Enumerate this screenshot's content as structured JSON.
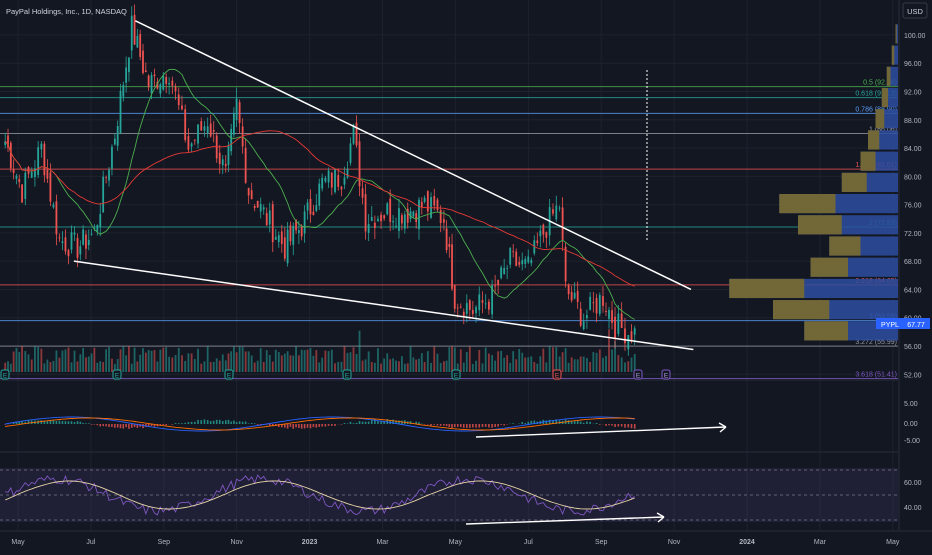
{
  "header": {
    "symbol_title": "PayPal Holdings, Inc., 1D, NASDAQ",
    "currency": "USD"
  },
  "price_axis": {
    "labels": [
      "100.00",
      "96.00",
      "92.00",
      "88.00",
      "84.00",
      "80.00",
      "76.00",
      "72.00",
      "68.00",
      "64.00",
      "60.00",
      "56.00",
      "52.00"
    ],
    "ticker_badge": "PYPL",
    "last_price": "67.77"
  },
  "macd_axis": {
    "labels": [
      "5.00",
      "0.00",
      "-5.00"
    ]
  },
  "rsi_axis": {
    "labels": [
      "60.00",
      "40.00"
    ]
  },
  "time_axis": {
    "labels": [
      "May",
      "Jul",
      "Sep",
      "Nov",
      "2023",
      "Mar",
      "May",
      "Jul",
      "Sep",
      "Nov",
      "2024",
      "Mar",
      "May"
    ],
    "bold": [
      "2023",
      "2024"
    ]
  },
  "colors": {
    "background": "#131722",
    "grid": "#1e222d",
    "up": "#26a69a",
    "down": "#ef5350",
    "trendline": "#ffffff",
    "ma_fast": "#4caf50",
    "ma_slow": "#e53935",
    "volume_profile_up": "#2d4ea0",
    "volume_profile_down": "#7a6a2e",
    "macd_line": "#2962ff",
    "signal_line": "#ff6d00",
    "rsi_line": "#7e57c2",
    "rsi_ma": "#e8d6a8"
  },
  "fibonacci_levels": [
    {
      "ratio": "0.5",
      "price": "92.68",
      "label": "0.5 (92.68)",
      "color": "#4caf50"
    },
    {
      "ratio": "0.618",
      "price": "91.13",
      "label": "0.618 (91.13)",
      "color": "#26a69a"
    },
    {
      "ratio": "0.786",
      "price": "88.90",
      "label": "0.786 (88.90)",
      "color": "#5b9cf6"
    },
    {
      "ratio": "1",
      "price": "86.06",
      "label": "1 (86.06)",
      "color": "#9598a1"
    },
    {
      "ratio": "1.382",
      "price": "81.01",
      "label": "1.382 (81.01)",
      "color": "#ef5350"
    },
    {
      "ratio": "2",
      "price": "72.83",
      "label": "2 (72.83)",
      "color": "#26a69a"
    },
    {
      "ratio": "2.618",
      "price": "64.65",
      "label": "2.618 (64.65)",
      "color": "#ef5350"
    },
    {
      "ratio": "3",
      "price": "59.59",
      "label": "3 (59.59)",
      "color": "#5b9cf6"
    },
    {
      "ratio": "3.272",
      "price": "55.99",
      "label": "3.272 (55.99)",
      "color": "#9598a1"
    },
    {
      "ratio": "3.618",
      "price": "51.41",
      "label": "3.618 (51.41)",
      "color": "#7e57c2"
    }
  ],
  "event_markers": [
    "E",
    "E",
    "E",
    "E",
    "E",
    "E",
    "E",
    "E",
    "E"
  ],
  "chart_data": {
    "type": "candlestick",
    "symbol": "PYPL",
    "interval": "1D",
    "exchange": "NASDAQ",
    "x_range": [
      "2022-05",
      "2024-05"
    ],
    "ylim": [
      50,
      102
    ],
    "last_price": 67.77,
    "close_series": [
      {
        "date": "2022-05-02",
        "close": 85
      },
      {
        "date": "2022-05-16",
        "close": 78
      },
      {
        "date": "2022-06-01",
        "close": 84
      },
      {
        "date": "2022-06-16",
        "close": 71
      },
      {
        "date": "2022-07-01",
        "close": 70
      },
      {
        "date": "2022-07-15",
        "close": 72
      },
      {
        "date": "2022-08-01",
        "close": 86
      },
      {
        "date": "2022-08-15",
        "close": 101
      },
      {
        "date": "2022-08-29",
        "close": 93
      },
      {
        "date": "2022-09-15",
        "close": 95
      },
      {
        "date": "2022-10-01",
        "close": 84
      },
      {
        "date": "2022-10-17",
        "close": 88
      },
      {
        "date": "2022-11-01",
        "close": 80
      },
      {
        "date": "2022-11-10",
        "close": 90
      },
      {
        "date": "2022-11-20",
        "close": 78
      },
      {
        "date": "2022-12-05",
        "close": 74
      },
      {
        "date": "2022-12-20",
        "close": 70
      },
      {
        "date": "2023-01-03",
        "close": 73
      },
      {
        "date": "2023-01-20",
        "close": 79
      },
      {
        "date": "2023-02-05",
        "close": 80
      },
      {
        "date": "2023-02-15",
        "close": 86
      },
      {
        "date": "2023-02-25",
        "close": 74
      },
      {
        "date": "2023-03-15",
        "close": 75
      },
      {
        "date": "2023-04-01",
        "close": 75
      },
      {
        "date": "2023-04-15",
        "close": 76
      },
      {
        "date": "2023-05-01",
        "close": 74
      },
      {
        "date": "2023-05-10",
        "close": 63
      },
      {
        "date": "2023-05-25",
        "close": 61
      },
      {
        "date": "2023-06-10",
        "close": 63
      },
      {
        "date": "2023-06-25",
        "close": 68
      },
      {
        "date": "2023-07-10",
        "close": 67
      },
      {
        "date": "2023-07-25",
        "close": 73
      },
      {
        "date": "2023-08-05",
        "close": 76
      },
      {
        "date": "2023-08-10",
        "close": 64
      },
      {
        "date": "2023-08-25",
        "close": 60
      },
      {
        "date": "2023-09-10",
        "close": 63
      },
      {
        "date": "2023-09-20",
        "close": 59
      },
      {
        "date": "2023-10-01",
        "close": 58
      },
      {
        "date": "2023-10-09",
        "close": 57.8
      }
    ],
    "volume_profile_rows": [
      {
        "price": 100,
        "volume": 2,
        "down": 1
      },
      {
        "price": 97,
        "volume": 5,
        "down": 2
      },
      {
        "price": 94,
        "volume": 9,
        "down": 3
      },
      {
        "price": 91,
        "volume": 13,
        "down": 5
      },
      {
        "price": 88,
        "volume": 18,
        "down": 7
      },
      {
        "price": 85,
        "volume": 24,
        "down": 9
      },
      {
        "price": 82,
        "volume": 30,
        "down": 12
      },
      {
        "price": 79,
        "volume": 45,
        "down": 20
      },
      {
        "price": 76,
        "volume": 95,
        "down": 45
      },
      {
        "price": 73,
        "volume": 80,
        "down": 35
      },
      {
        "price": 70,
        "volume": 55,
        "down": 25
      },
      {
        "price": 67,
        "volume": 70,
        "down": 30
      },
      {
        "price": 64,
        "volume": 135,
        "down": 60
      },
      {
        "price": 61,
        "volume": 100,
        "down": 45
      },
      {
        "price": 58,
        "volume": 75,
        "down": 35
      }
    ],
    "trendlines": [
      {
        "name": "upper",
        "from": {
          "date": "2022-08-18",
          "price": 102
        },
        "to": {
          "date": "2023-11-22",
          "price": 64
        }
      },
      {
        "name": "lower",
        "from": {
          "date": "2022-06-28",
          "price": 68
        },
        "to": {
          "date": "2023-11-24",
          "price": 55.5
        }
      }
    ],
    "rsi_levels": [
      70,
      50,
      30
    ]
  }
}
